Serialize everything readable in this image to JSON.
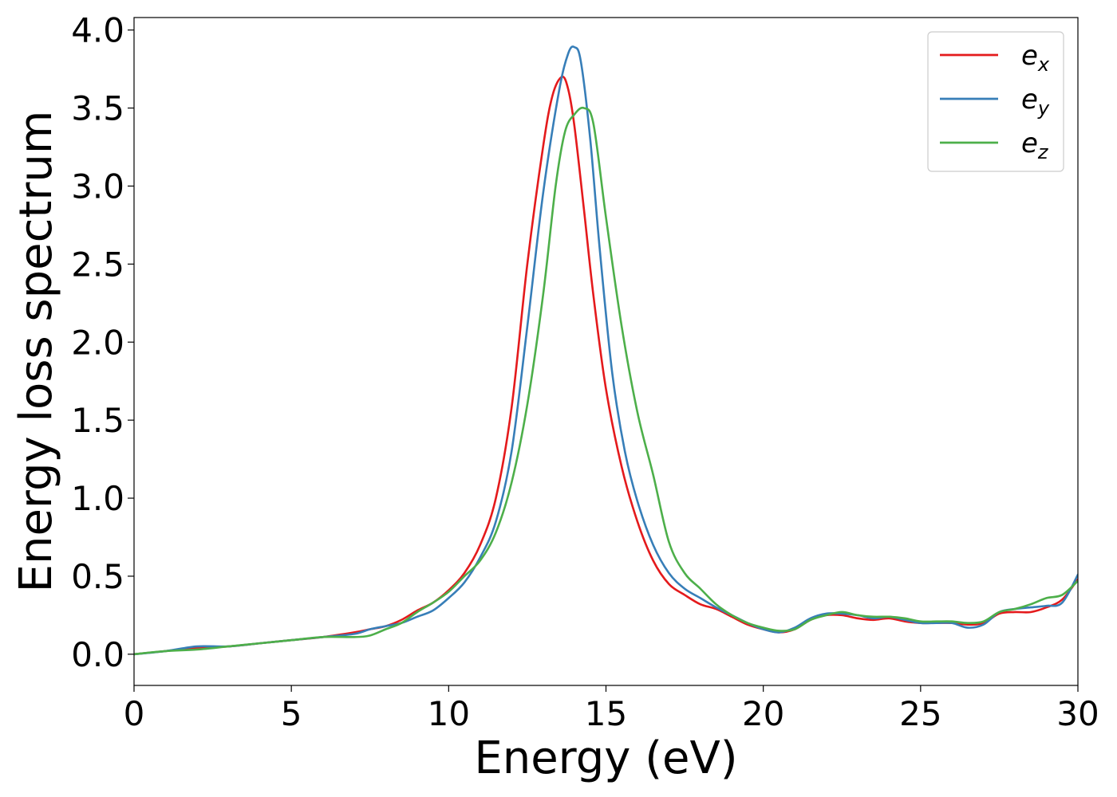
{
  "chart_data": {
    "type": "line",
    "xlabel": "Energy (eV)",
    "ylabel": "Energy loss spectrum",
    "xlim": [
      0,
      30
    ],
    "ylim": [
      -0.2,
      4.08
    ],
    "xticks": [
      0,
      5,
      10,
      15,
      20,
      25,
      30
    ],
    "xtick_labels": [
      "0",
      "5",
      "10",
      "15",
      "20",
      "25",
      "30"
    ],
    "yticks": [
      0.0,
      0.5,
      1.0,
      1.5,
      2.0,
      2.5,
      3.0,
      3.5,
      4.0
    ],
    "ytick_labels": [
      "0.0",
      "0.5",
      "1.0",
      "1.5",
      "2.0",
      "2.5",
      "3.0",
      "3.5",
      "4.0"
    ],
    "grid": false,
    "legend_position": "top-right",
    "series": [
      {
        "name": "e",
        "sub": "x",
        "color": "#e41a1c",
        "points": [
          [
            0,
            0.0
          ],
          [
            1,
            0.02
          ],
          [
            2,
            0.04
          ],
          [
            3,
            0.05
          ],
          [
            4,
            0.07
          ],
          [
            5,
            0.09
          ],
          [
            6,
            0.11
          ],
          [
            7,
            0.14
          ],
          [
            7.5,
            0.16
          ],
          [
            8,
            0.18
          ],
          [
            8.5,
            0.22
          ],
          [
            9,
            0.28
          ],
          [
            9.5,
            0.33
          ],
          [
            10,
            0.41
          ],
          [
            10.5,
            0.52
          ],
          [
            11,
            0.7
          ],
          [
            11.5,
            1.0
          ],
          [
            12,
            1.58
          ],
          [
            12.5,
            2.5
          ],
          [
            13,
            3.25
          ],
          [
            13.3,
            3.58
          ],
          [
            13.6,
            3.7
          ],
          [
            13.8,
            3.62
          ],
          [
            14,
            3.38
          ],
          [
            14.3,
            2.85
          ],
          [
            14.6,
            2.3
          ],
          [
            15,
            1.7
          ],
          [
            15.5,
            1.2
          ],
          [
            16,
            0.85
          ],
          [
            16.5,
            0.6
          ],
          [
            17,
            0.45
          ],
          [
            17.5,
            0.38
          ],
          [
            18,
            0.32
          ],
          [
            18.5,
            0.29
          ],
          [
            19,
            0.24
          ],
          [
            19.5,
            0.19
          ],
          [
            20,
            0.16
          ],
          [
            20.5,
            0.14
          ],
          [
            21,
            0.16
          ],
          [
            21.5,
            0.22
          ],
          [
            22,
            0.25
          ],
          [
            22.5,
            0.25
          ],
          [
            23,
            0.23
          ],
          [
            23.5,
            0.22
          ],
          [
            24,
            0.23
          ],
          [
            24.5,
            0.21
          ],
          [
            25,
            0.2
          ],
          [
            25.5,
            0.2
          ],
          [
            26,
            0.2
          ],
          [
            26.5,
            0.19
          ],
          [
            27,
            0.2
          ],
          [
            27.5,
            0.26
          ],
          [
            28,
            0.27
          ],
          [
            28.5,
            0.27
          ],
          [
            29,
            0.3
          ],
          [
            29.5,
            0.35
          ],
          [
            30,
            0.48
          ]
        ]
      },
      {
        "name": "e",
        "sub": "y",
        "color": "#377eb8",
        "points": [
          [
            0,
            0.0
          ],
          [
            1,
            0.02
          ],
          [
            2,
            0.05
          ],
          [
            3,
            0.05
          ],
          [
            4,
            0.07
          ],
          [
            5,
            0.09
          ],
          [
            6,
            0.11
          ],
          [
            7,
            0.13
          ],
          [
            7.5,
            0.16
          ],
          [
            8,
            0.18
          ],
          [
            8.5,
            0.2
          ],
          [
            9,
            0.24
          ],
          [
            9.5,
            0.28
          ],
          [
            10,
            0.36
          ],
          [
            10.5,
            0.46
          ],
          [
            11,
            0.62
          ],
          [
            11.5,
            0.85
          ],
          [
            12,
            1.3
          ],
          [
            12.5,
            2.1
          ],
          [
            13,
            2.95
          ],
          [
            13.5,
            3.6
          ],
          [
            13.8,
            3.85
          ],
          [
            14,
            3.89
          ],
          [
            14.2,
            3.8
          ],
          [
            14.5,
            3.3
          ],
          [
            14.8,
            2.6
          ],
          [
            15.2,
            1.8
          ],
          [
            15.6,
            1.3
          ],
          [
            16,
            0.98
          ],
          [
            16.5,
            0.7
          ],
          [
            17,
            0.52
          ],
          [
            17.5,
            0.42
          ],
          [
            18,
            0.36
          ],
          [
            18.5,
            0.3
          ],
          [
            19,
            0.25
          ],
          [
            19.5,
            0.2
          ],
          [
            20,
            0.16
          ],
          [
            20.5,
            0.14
          ],
          [
            21,
            0.17
          ],
          [
            21.5,
            0.23
          ],
          [
            22,
            0.26
          ],
          [
            22.5,
            0.26
          ],
          [
            23,
            0.25
          ],
          [
            23.5,
            0.23
          ],
          [
            24,
            0.24
          ],
          [
            24.5,
            0.22
          ],
          [
            25,
            0.2
          ],
          [
            25.5,
            0.2
          ],
          [
            26,
            0.2
          ],
          [
            26.5,
            0.17
          ],
          [
            27,
            0.19
          ],
          [
            27.5,
            0.27
          ],
          [
            28,
            0.29
          ],
          [
            28.5,
            0.3
          ],
          [
            29,
            0.31
          ],
          [
            29.5,
            0.33
          ],
          [
            30,
            0.51
          ]
        ]
      },
      {
        "name": "e",
        "sub": "z",
        "color": "#4daf4a",
        "points": [
          [
            0,
            0.0
          ],
          [
            1,
            0.02
          ],
          [
            2,
            0.03
          ],
          [
            3,
            0.05
          ],
          [
            4,
            0.07
          ],
          [
            5,
            0.09
          ],
          [
            6,
            0.11
          ],
          [
            7,
            0.11
          ],
          [
            7.5,
            0.12
          ],
          [
            8,
            0.16
          ],
          [
            8.5,
            0.2
          ],
          [
            9,
            0.27
          ],
          [
            9.5,
            0.33
          ],
          [
            10,
            0.4
          ],
          [
            10.5,
            0.5
          ],
          [
            11,
            0.6
          ],
          [
            11.5,
            0.78
          ],
          [
            12,
            1.1
          ],
          [
            12.5,
            1.6
          ],
          [
            13,
            2.3
          ],
          [
            13.4,
            3.0
          ],
          [
            13.7,
            3.35
          ],
          [
            14,
            3.46
          ],
          [
            14.3,
            3.5
          ],
          [
            14.6,
            3.4
          ],
          [
            15,
            2.8
          ],
          [
            15.5,
            2.1
          ],
          [
            16,
            1.55
          ],
          [
            16.5,
            1.15
          ],
          [
            17,
            0.72
          ],
          [
            17.5,
            0.52
          ],
          [
            18,
            0.42
          ],
          [
            18.5,
            0.32
          ],
          [
            19,
            0.25
          ],
          [
            19.5,
            0.2
          ],
          [
            20,
            0.17
          ],
          [
            20.5,
            0.15
          ],
          [
            21,
            0.16
          ],
          [
            21.5,
            0.22
          ],
          [
            22,
            0.25
          ],
          [
            22.5,
            0.27
          ],
          [
            23,
            0.25
          ],
          [
            23.5,
            0.24
          ],
          [
            24,
            0.24
          ],
          [
            24.5,
            0.23
          ],
          [
            25,
            0.21
          ],
          [
            25.5,
            0.21
          ],
          [
            26,
            0.21
          ],
          [
            26.5,
            0.2
          ],
          [
            27,
            0.21
          ],
          [
            27.5,
            0.27
          ],
          [
            28,
            0.29
          ],
          [
            28.5,
            0.32
          ],
          [
            29,
            0.36
          ],
          [
            29.5,
            0.38
          ],
          [
            30,
            0.47
          ]
        ]
      }
    ]
  }
}
